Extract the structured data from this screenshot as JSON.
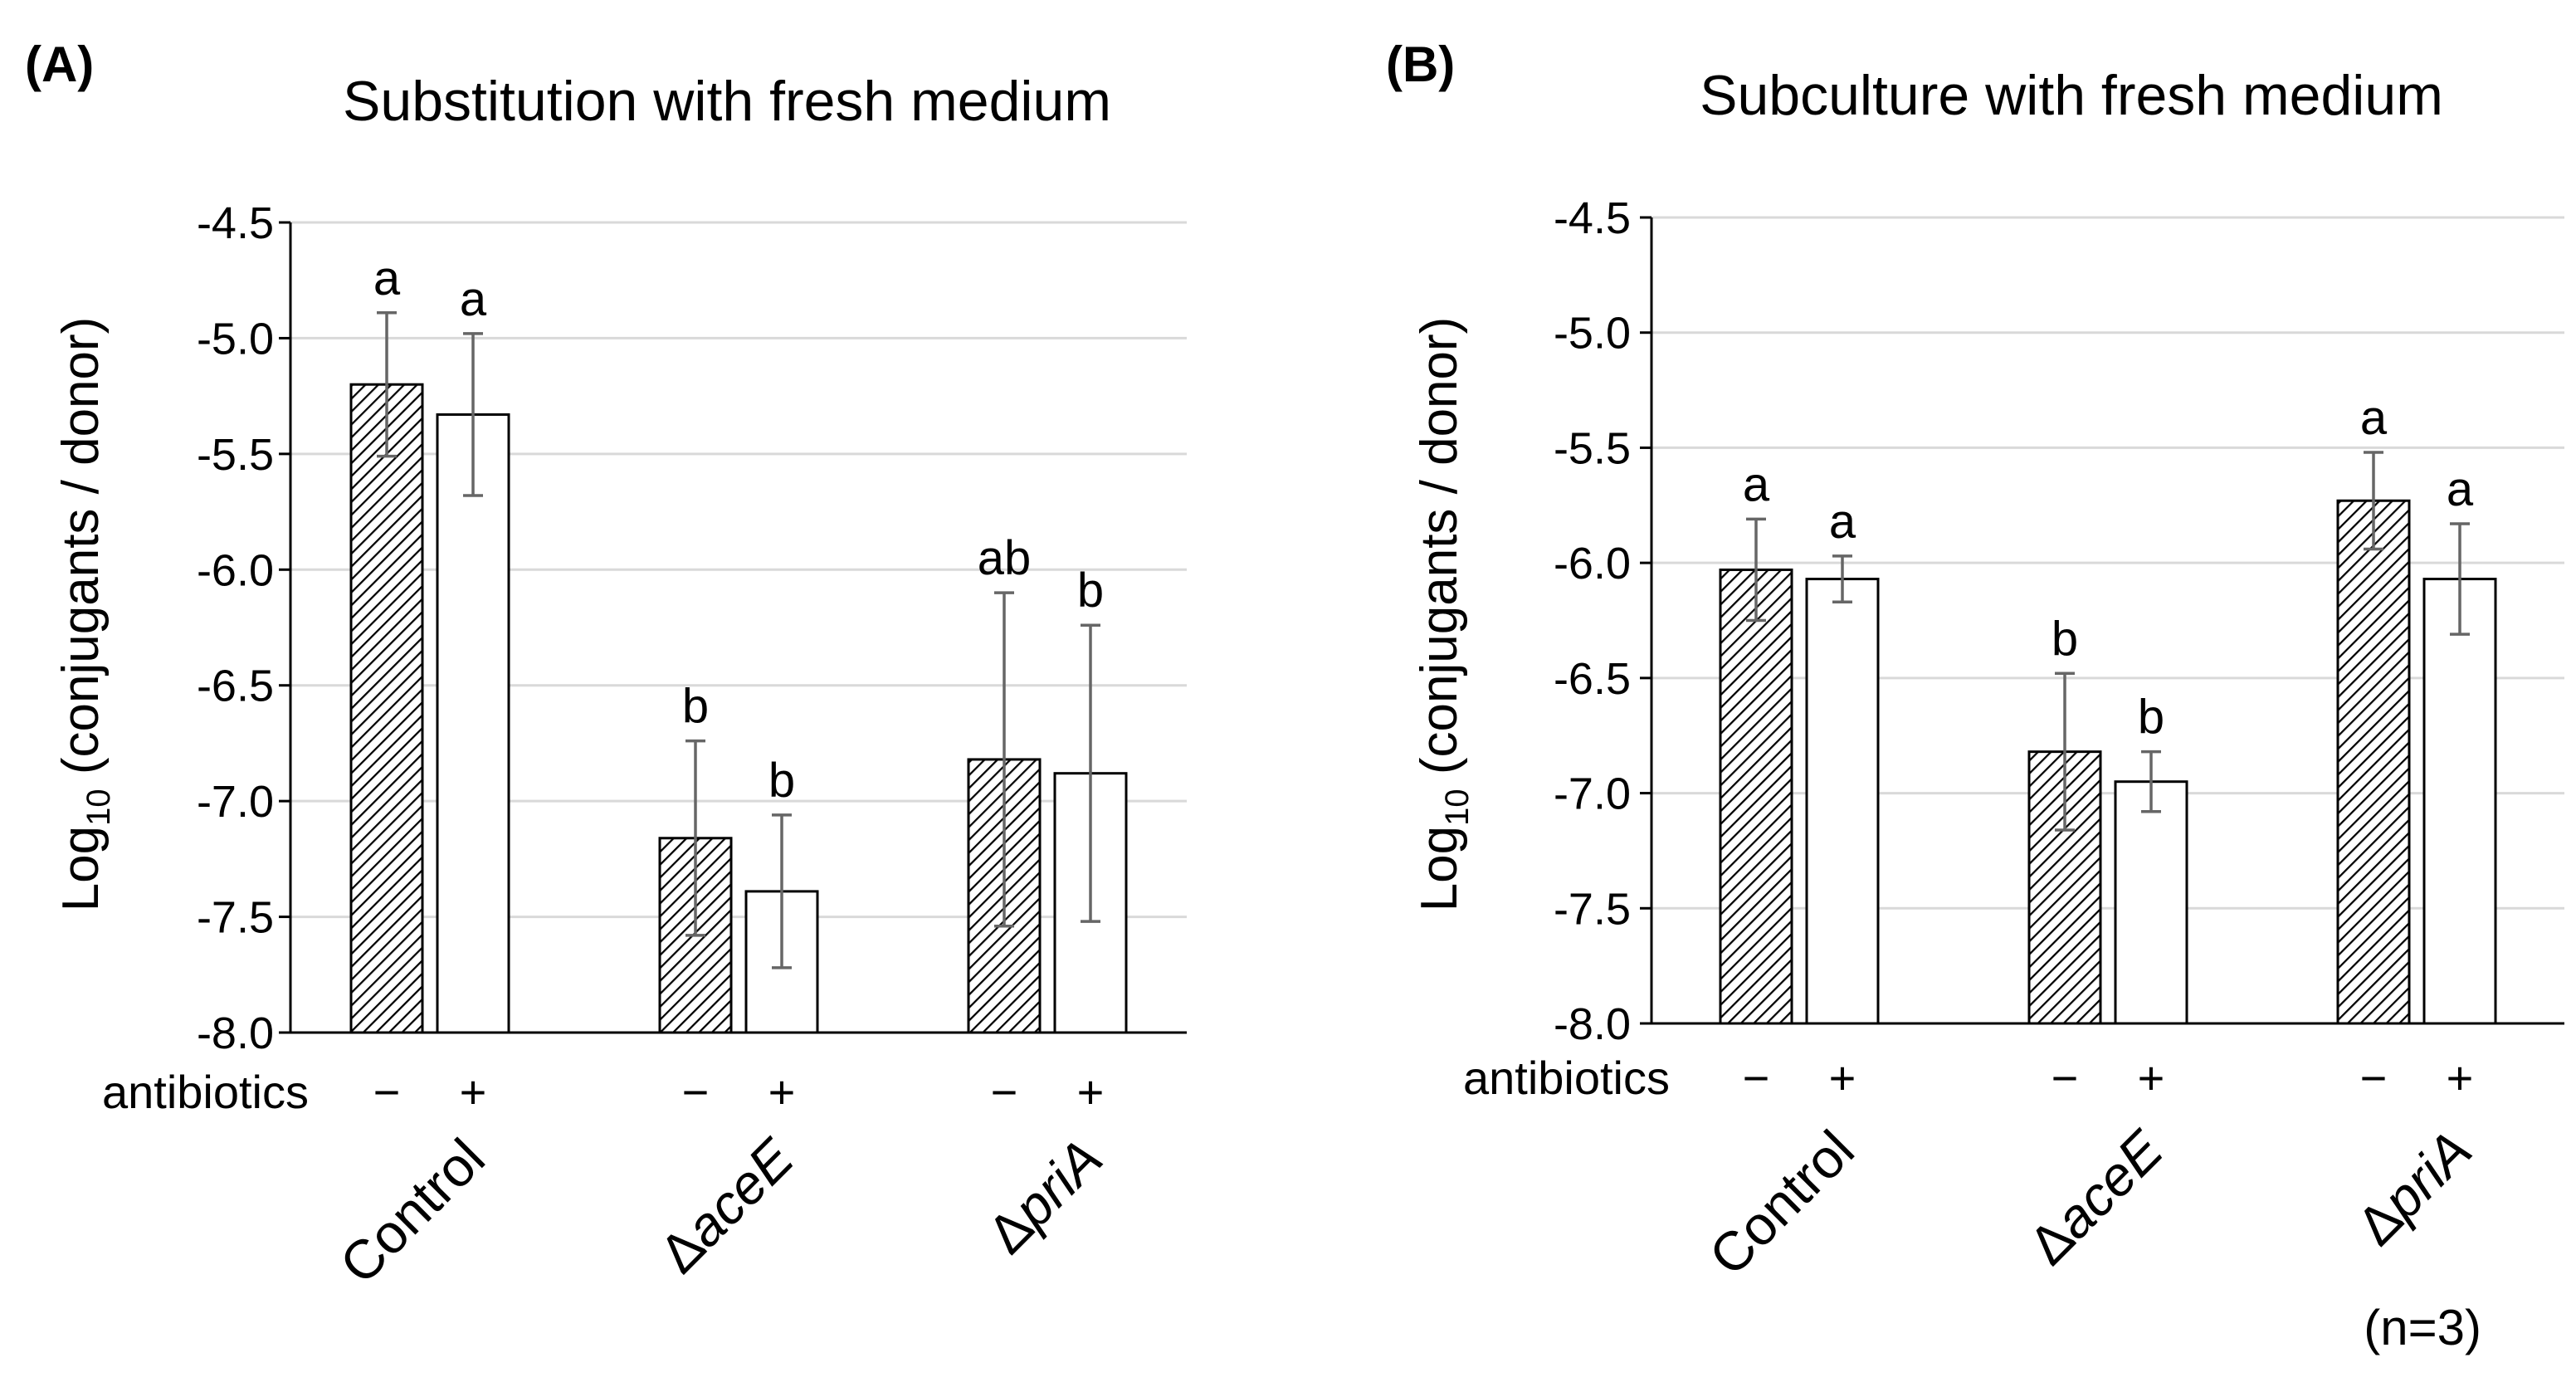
{
  "chart_data": [
    {
      "type": "bar",
      "panel": "(A)",
      "title": "Substitution with fresh medium",
      "ylabel_prefix": "Log",
      "ylabel_sub": "10",
      "ylabel_rest": " (conjugants / donor)",
      "xlabel": "",
      "ylim": [
        -8.0,
        -4.5
      ],
      "yticks": [
        "-4.5",
        "-5.0",
        "-5.5",
        "-6.0",
        "-6.5",
        "-7.0",
        "-7.5",
        "-8.0"
      ],
      "grid": true,
      "treatment_label": "antibiotics",
      "categories": [
        {
          "prefix": "",
          "name": "Control",
          "italic": false
        },
        {
          "prefix": "Δ",
          "name": "aceE",
          "italic": true
        },
        {
          "prefix": "Δ",
          "name": "priA",
          "italic": true
        }
      ],
      "series": [
        {
          "name": "−",
          "pattern": "hatched",
          "values": [
            -5.2,
            -7.16,
            -6.82
          ],
          "errors": [
            0.31,
            0.42,
            0.72
          ],
          "letters": [
            "a",
            "b",
            "ab"
          ]
        },
        {
          "name": "+",
          "pattern": "open",
          "values": [
            -5.33,
            -7.39,
            -6.88
          ],
          "errors": [
            0.35,
            0.33,
            0.64
          ],
          "letters": [
            "a",
            "b",
            "b"
          ]
        }
      ]
    },
    {
      "type": "bar",
      "panel": "(B)",
      "title": "Subculture with fresh medium",
      "ylabel_prefix": "Log",
      "ylabel_sub": "10",
      "ylabel_rest": " (conjugants / donor)",
      "xlabel": "",
      "ylim": [
        -8.0,
        -4.5
      ],
      "yticks": [
        "-4.5",
        "-5.0",
        "-5.5",
        "-6.0",
        "-6.5",
        "-7.0",
        "-7.5",
        "-8.0"
      ],
      "grid": true,
      "treatment_label": "antibiotics",
      "categories": [
        {
          "prefix": "",
          "name": "Control",
          "italic": false
        },
        {
          "prefix": "Δ",
          "name": "aceE",
          "italic": true
        },
        {
          "prefix": "Δ",
          "name": "priA",
          "italic": true
        }
      ],
      "series": [
        {
          "name": "−",
          "pattern": "hatched",
          "values": [
            -6.03,
            -6.82,
            -5.73
          ],
          "errors": [
            0.22,
            0.34,
            0.21
          ],
          "letters": [
            "a",
            "b",
            "a"
          ]
        },
        {
          "name": "+",
          "pattern": "open",
          "values": [
            -6.07,
            -6.95,
            -6.07
          ],
          "errors": [
            0.1,
            0.13,
            0.24
          ],
          "letters": [
            "a",
            "b",
            "a"
          ]
        }
      ]
    }
  ],
  "footnote": "(n=3)"
}
